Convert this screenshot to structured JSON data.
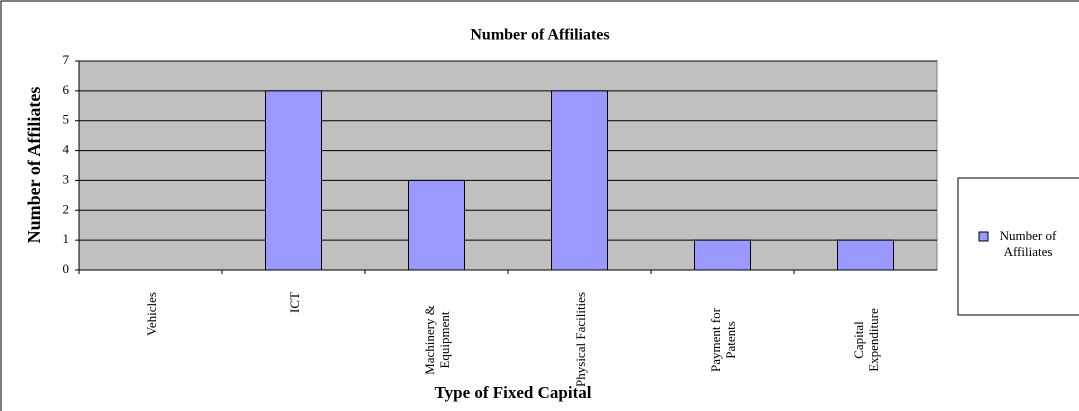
{
  "chart_data": {
    "type": "bar",
    "title": "Number of Affiliates",
    "x_label": "Type of Fixed Capital",
    "y_label": "Number of Affiliates",
    "categories": [
      "Vehicles",
      "ICT",
      "Machinery & Equipment",
      "Physical Facilities",
      "Payment for Patents",
      "Capital Expenditure"
    ],
    "series": [
      {
        "name": "Number of Affiliates",
        "color": "#9999ff",
        "values": [
          0,
          6,
          3,
          6,
          1,
          1
        ]
      }
    ],
    "ylim": [
      0,
      7
    ],
    "yticks": [
      0,
      1,
      2,
      3,
      4,
      5,
      6,
      7
    ],
    "grid": true,
    "legend": "right"
  }
}
